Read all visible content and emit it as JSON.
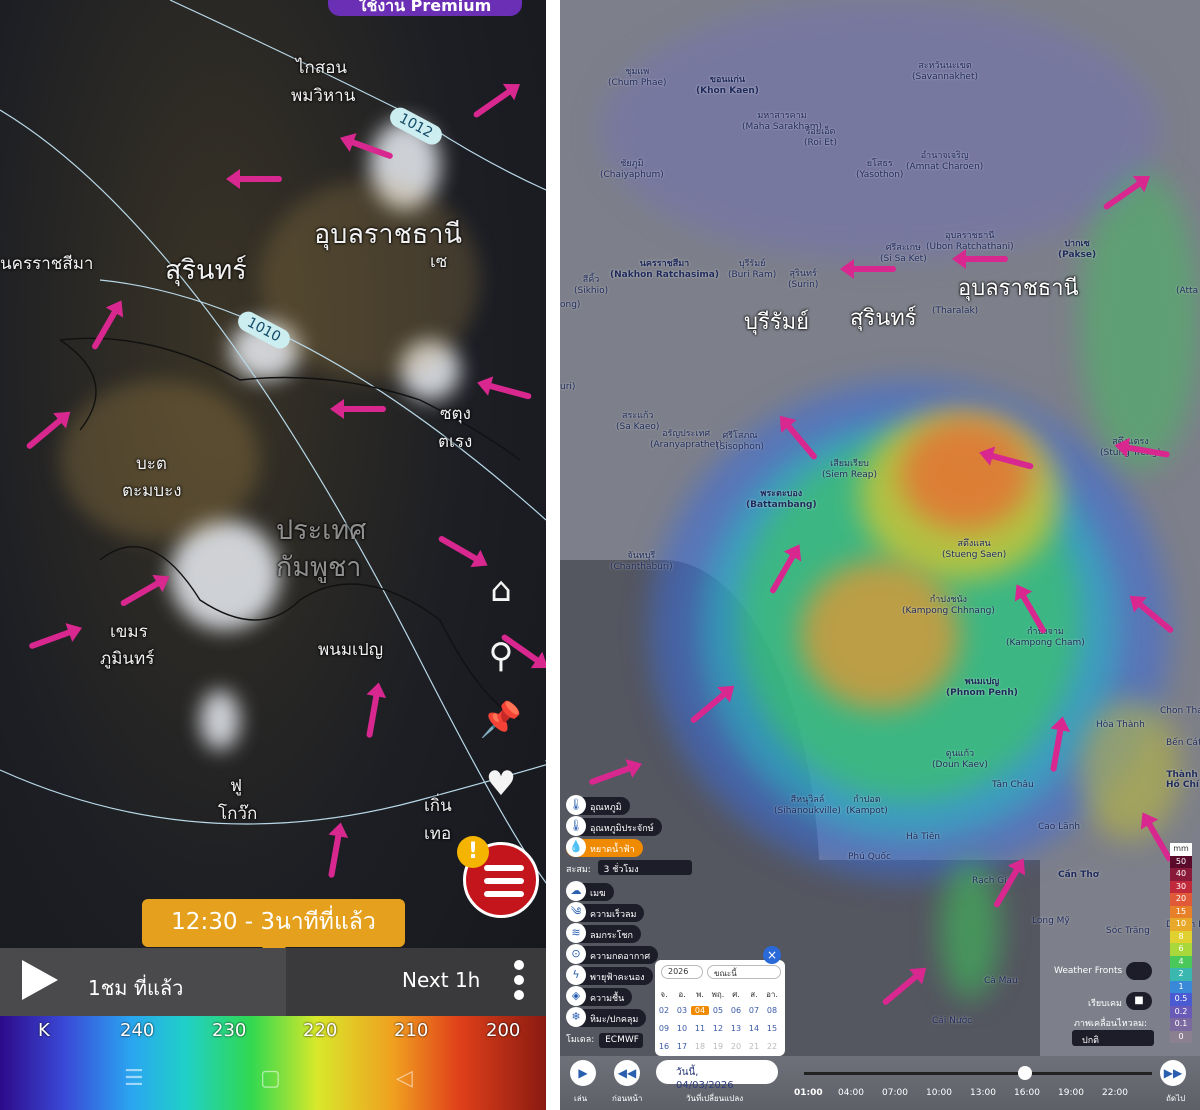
{
  "left": {
    "premium_label": "ใช้งาน Premium",
    "labels": {
      "khong_chiam": "ไกสอน",
      "phomvihan": "พมวิหาน",
      "ubon": "อุบลราชธานี",
      "se": "เซ",
      "surin": "สุรินทร์",
      "nakhon": "นครราชสีมา",
      "stung1": "ซตุง",
      "stung2": "ตเรง",
      "battambang1": "บะต",
      "battambang2": "ตะมบะง",
      "cambodia1": "ประเทศ",
      "cambodia2": "กัมพูชา",
      "phnompenh": "พนมเปญ",
      "khemara1": "เขมร",
      "khemara2": "ภูมินทร์",
      "phu1": "ฟู",
      "phu2": "โกว๊ก",
      "can1": "เกิ่น",
      "can2": "เทอ"
    },
    "isobars": [
      "1012",
      "1010"
    ],
    "alert_badge": "!",
    "time_bubble": "12:30 - 3นาทีที่แล้ว",
    "prev_label": "1ชม ที่แล้ว",
    "next_label": "Next 1h",
    "scale_unit": "K",
    "scale_ticks": [
      "240",
      "230",
      "220",
      "210",
      "200"
    ]
  },
  "right": {
    "big_labels": {
      "ubon": "อุบลราชธานี",
      "surin": "สุรินทร์",
      "buriram": "บุรีรัมย์"
    },
    "cities": {
      "savannakhet": "สะหวันนะเขต\n(Savannakhet)",
      "chum_phae": "ชุมแพ\n(Chum Phae)",
      "khon_kaen": "ขอนแก่น\n(Khon Kaen)",
      "maha": "มหาสารคาม\n(Maha Sarakham)",
      "roi_et": "ร้อยเอ็ด\n(Roi Et)",
      "yasothon": "ยโสธร\n(Yasothon)",
      "amnat": "อำนาจเจริญ\n(Amnat Charoen)",
      "chaiyaphum": "ชัยภูมิ\n(Chaiyaphum)",
      "ubon_small": "อุบลราชธานี\n(Ubon Ratchathani)",
      "pakse": "ปากเซ\n(Pakse)",
      "nakhon": "นครราชสีมา\n(Nakhon Ratchasima)",
      "sikhio": "สีคิ้ว\n(Sikhio)",
      "buri_ram": "บุรีรัมย์\n(Buri Ram)",
      "surin_small": "สุรินทร์\n(Surin)",
      "si_sa_ket": "ศรีสะเกษ\n(Si Sa Ket)",
      "tharalak": "(Tharalak)",
      "sa_kaeo": "สระแก้ว\n(Sa Kaeo)",
      "aranya": "อรัญประเทศ\n(Aranyaprathet)",
      "sisophon": "ศรีโสภณ\n(Sisophon)",
      "siem_reap": "เสียมเรียบ\n(Siem Reap)",
      "stung_treng": "สตึงแตรง\n(Stung Treng)",
      "battambang": "พระตะบอง\n(Battambang)",
      "stueng_saen": "สตึงแสน\n(Stueng Saen)",
      "chanthaburi": "จันทบุรี\n(Chanthaburi)",
      "kampong_chhnang": "กำปงชนัง\n(Kampong Chhnang)",
      "kampong_cham": "กำปงจาม\n(Kampong Cham)",
      "phnom_penh": "พนมเปญ\n(Phnom Penh)",
      "doun_kaev": "ดูนแก้ว\n(Doun Kaev)",
      "sihanoukville": "สีหนุวิลล์\n(Sihanoukville)",
      "kampot": "กำปอต\n(Kampot)",
      "ha_tien": "Hà Tiên",
      "tan_chau": "Tân Châu",
      "cao_lanh": "Cao Lãnh",
      "phu_quoc": "Phú Quốc",
      "rach_gia": "Rạch Giá",
      "can_tho": "Cần Thơ",
      "long_my": "Long Mỹ",
      "soc_trang": "Sóc Trăng",
      "duyen_hai": "Duyên H",
      "ca_mau": "Cà Mau",
      "cai_nuoc": "Cái Nước",
      "hoa_thanh": "Hòa Thành",
      "chon_thanh": "Chon Thanh",
      "ben_cat": "Bến Cát",
      "hcmc": "Thành ph\nHồ Chí Mi",
      "attapeu": "(Atta",
      "ong": "ong)",
      "uri": "uri)"
    },
    "layers": [
      {
        "icon": "🌡",
        "label": "อุณหภูมิ"
      },
      {
        "icon": "🌡",
        "label": "อุณหภูมิประจักษ์"
      },
      {
        "icon": "💧",
        "label": "หยาดน้ำฟ้า"
      },
      {
        "icon": "☁",
        "label": "เมฆ"
      },
      {
        "icon": "༄",
        "label": "ความเร็วลม"
      },
      {
        "icon": "≋",
        "label": "ลมกระโชก"
      },
      {
        "icon": "⊙",
        "label": "ความกดอากาศ"
      },
      {
        "icon": "ϟ",
        "label": "พายุฟ้าคะนอง"
      },
      {
        "icon": "◈",
        "label": "ความชื้น"
      },
      {
        "icon": "❄",
        "label": "หิมะ/ปกคลุม"
      }
    ],
    "accum_label": "สะสม:",
    "accum_value": "3 ชั่วโมง",
    "model_label": "โมเดล:",
    "model_value": "ECMWF",
    "mm_unit": "mm",
    "mm_scale": [
      "50",
      "40",
      "30",
      "20",
      "15",
      "10",
      "8",
      "6",
      "4",
      "2",
      "1",
      "0.5",
      "0.2",
      "0.1",
      "0"
    ],
    "weather_fronts": "Weather Fronts",
    "radar_label": "เรียบเคม",
    "animation_label": "ภาพเคลื่อนไหวลม:",
    "animation_value": "ปกติ",
    "calendar": {
      "year": "2026",
      "mode": "ขณะนี้",
      "weekdays": [
        "จ.",
        "อ.",
        "พ.",
        "พฤ.",
        "ศ.",
        "ส.",
        "อา."
      ],
      "week1": [
        "02",
        "03",
        "04",
        "05",
        "06",
        "07",
        "08"
      ],
      "week2": [
        "09",
        "10",
        "11",
        "12",
        "13",
        "14",
        "15"
      ],
      "week3": [
        "16",
        "17",
        "18",
        "19",
        "20",
        "21",
        "22"
      ]
    },
    "date_display": "วันนี้, 04/03/2026",
    "date_caption": "วันที่เปลี่ยนแปลง",
    "play_caption": "เล่น",
    "prev_caption": "ก่อนหน้า",
    "next_caption": "ถัดไป",
    "timeline_hours": [
      "01:00",
      "04:00",
      "07:00",
      "10:00",
      "13:00",
      "16:00",
      "19:00",
      "22:00"
    ]
  }
}
